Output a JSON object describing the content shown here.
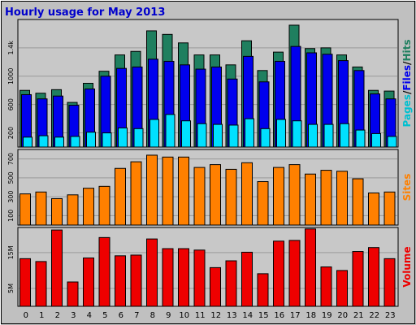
{
  "chart_data": {
    "type": "bar",
    "title": "Hourly usage for May 2013",
    "categories": [
      "0",
      "1",
      "2",
      "3",
      "4",
      "5",
      "6",
      "7",
      "8",
      "9",
      "10",
      "11",
      "12",
      "13",
      "14",
      "15",
      "16",
      "17",
      "18",
      "19",
      "20",
      "21",
      "22",
      "23"
    ],
    "colors": {
      "hits": "#1f7f5f",
      "files": "#0000ee",
      "pages": "#00e0ff",
      "sites": "#ff8000",
      "volume": "#ee0000",
      "background": "#c0c0c0",
      "plot_background": "#c8c8c8",
      "title": "#0000cc"
    },
    "panels": [
      {
        "id": "pages_files_hits",
        "ylim": [
          0,
          1800
        ],
        "y_ticks": [
          200,
          600,
          1000,
          1400
        ],
        "y_tick_labels": [
          "200",
          "600",
          "1000",
          "1.4k"
        ],
        "axis_label_parts": [
          {
            "text": "Pages",
            "color": "#00c0d0"
          },
          {
            "text": "/",
            "color": "#000000"
          },
          {
            "text": "Files",
            "color": "#0000ee"
          },
          {
            "text": "/",
            "color": "#000000"
          },
          {
            "text": "Hits",
            "color": "#1f7f5f"
          }
        ],
        "series": [
          {
            "name": "Hits",
            "values": [
              800,
              760,
              810,
              630,
              900,
              1070,
              1300,
              1350,
              1640,
              1590,
              1470,
              1300,
              1300,
              1160,
              1500,
              1080,
              1340,
              1720,
              1390,
              1400,
              1300,
              1130,
              800,
              790
            ]
          },
          {
            "name": "Files",
            "values": [
              740,
              680,
              720,
              590,
              820,
              1000,
              1110,
              1130,
              1240,
              1210,
              1160,
              1100,
              1130,
              960,
              1280,
              920,
              1210,
              1420,
              1330,
              1310,
              1220,
              1080,
              750,
              680
            ]
          },
          {
            "name": "Pages",
            "values": [
              140,
              160,
              140,
              150,
              210,
              200,
              270,
              260,
              390,
              460,
              370,
              330,
              320,
              310,
              400,
              260,
              390,
              370,
              320,
              320,
              330,
              240,
              190,
              150
            ]
          }
        ]
      },
      {
        "id": "sites",
        "ylim": [
          0,
          800
        ],
        "y_ticks": [
          100,
          300,
          500,
          700
        ],
        "y_tick_labels": [
          "100",
          "300",
          "500",
          "700"
        ],
        "axis_label_parts": [
          {
            "text": "Sites",
            "color": "#ff8000"
          }
        ],
        "series": [
          {
            "name": "Sites",
            "values": [
              330,
              350,
              280,
              320,
              390,
              410,
              600,
              670,
              740,
              720,
              720,
              610,
              640,
              590,
              660,
              460,
              610,
              640,
              540,
              580,
              570,
              490,
              340,
              350
            ]
          }
        ]
      },
      {
        "id": "volume",
        "ylim": [
          0,
          22
        ],
        "y_ticks": [
          5,
          15
        ],
        "y_tick_labels": [
          "5M",
          "15M"
        ],
        "axis_label_parts": [
          {
            "text": "Volume",
            "color": "#ee0000"
          }
        ],
        "series": [
          {
            "name": "Volume",
            "values": [
              13.3,
              12.5,
              21.3,
              6.8,
              13.5,
              19.2,
              14.1,
              14.3,
              18.8,
              16.1,
              16.1,
              15.7,
              10.8,
              12.7,
              15.1,
              9.1,
              18.2,
              18.4,
              21.6,
              11.0,
              10.0,
              15.3,
              16.4,
              13.3
            ]
          }
        ]
      }
    ]
  }
}
